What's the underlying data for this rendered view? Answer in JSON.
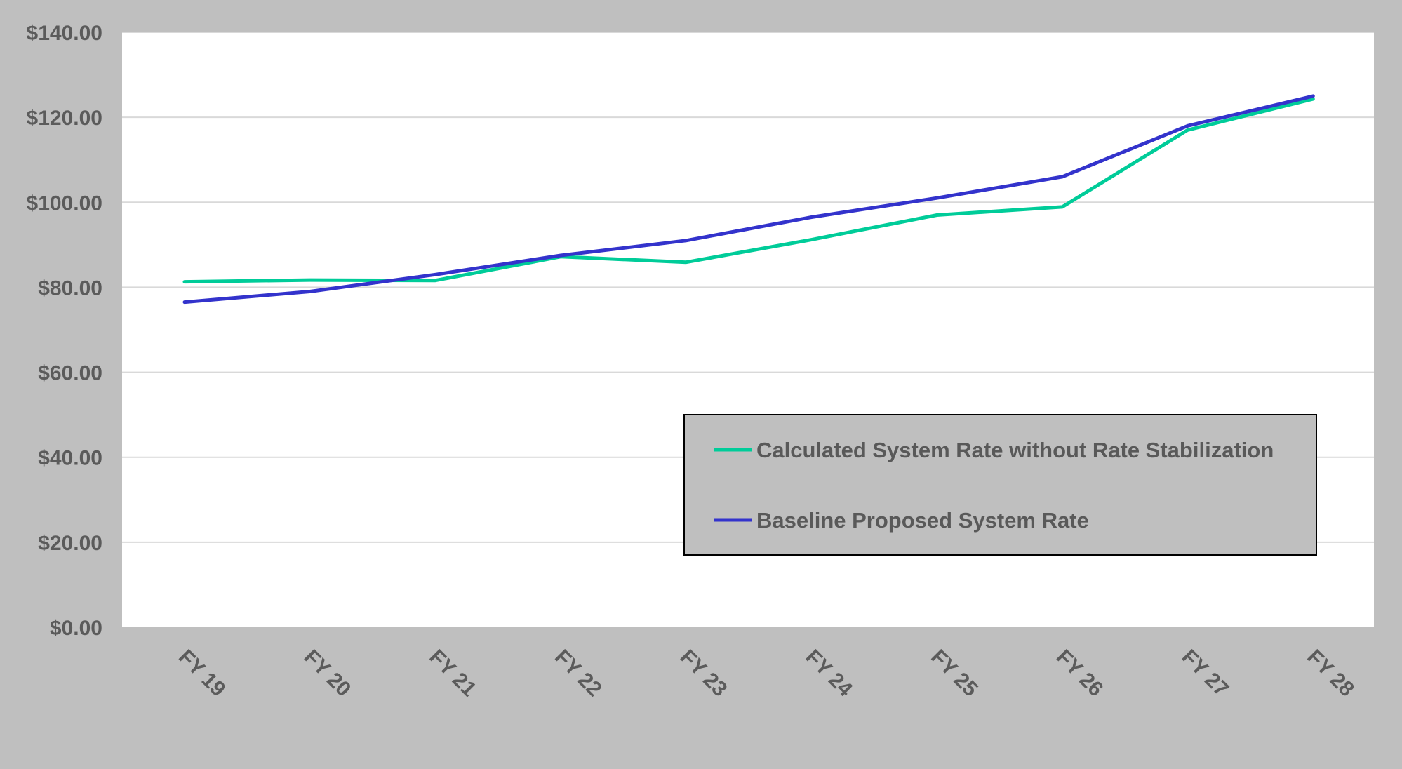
{
  "chart_data": {
    "type": "line",
    "title": "",
    "xlabel": "",
    "ylabel": "",
    "categories": [
      "FY 19",
      "FY 20",
      "FY 21",
      "FY 22",
      "FY 23",
      "FY 24",
      "FY 25",
      "FY 26",
      "FY 27",
      "FY 28"
    ],
    "y_ticks": [
      "$0.00",
      "$20.00",
      "$40.00",
      "$60.00",
      "$80.00",
      "$100.00",
      "$120.00",
      "$140.00"
    ],
    "ylim": [
      0,
      140
    ],
    "grid": true,
    "legend_position": "lower-right",
    "series": [
      {
        "name": "Calculated System Rate without Rate Stabilization",
        "color": "#00cc99",
        "values": [
          81.3,
          81.7,
          81.6,
          87.2,
          85.9,
          91.2,
          97.0,
          98.9,
          117.0,
          124.3
        ]
      },
      {
        "name": "Baseline Proposed System Rate",
        "color": "#3333cc",
        "values": [
          76.5,
          79.0,
          83.0,
          87.5,
          91.0,
          96.5,
          101.0,
          106.0,
          118.0,
          125.0
        ]
      }
    ]
  },
  "colors": {
    "frame": "#bfbfbf",
    "plot_background": "#ffffff",
    "gridline": "#d9d9d9",
    "legend_background": "#bfbfbf",
    "legend_border": "#000000",
    "text": "#5b5b5b"
  }
}
